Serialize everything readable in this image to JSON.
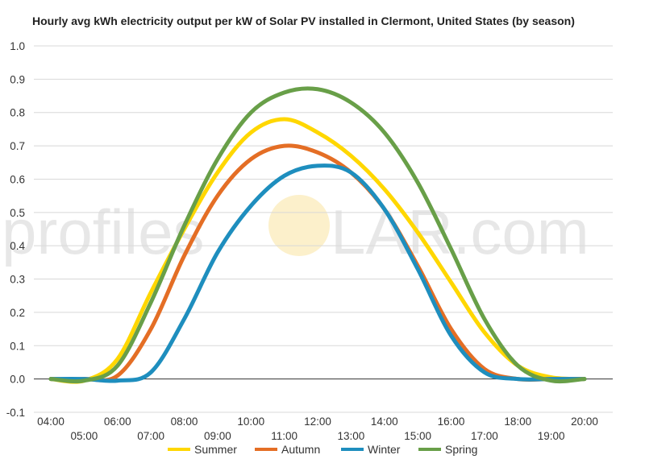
{
  "watermark": {
    "left": "profiles",
    "right": "LAR.com",
    "sun_color": "#f7d36b"
  },
  "chart_data": {
    "type": "line",
    "title": "Hourly avg kWh electricity output per kW of Solar PV installed in Clermont, United States (by season)",
    "xlabel": "",
    "ylabel": "",
    "ylim": [
      -0.1,
      1.0
    ],
    "yticks": [
      "-0.1",
      "0.0",
      "0.1",
      "0.2",
      "0.3",
      "0.4",
      "0.5",
      "0.6",
      "0.7",
      "0.8",
      "0.9",
      "1.0"
    ],
    "x": [
      "04:00",
      "05:00",
      "06:00",
      "07:00",
      "08:00",
      "09:00",
      "10:00",
      "11:00",
      "12:00",
      "13:00",
      "14:00",
      "15:00",
      "16:00",
      "17:00",
      "18:00",
      "19:00",
      "20:00"
    ],
    "grid": true,
    "legend_position": "bottom",
    "series": [
      {
        "name": "Summer",
        "color": "#ffd700",
        "values": [
          0.0,
          -0.005,
          0.06,
          0.26,
          0.45,
          0.62,
          0.74,
          0.78,
          0.74,
          0.67,
          0.57,
          0.44,
          0.29,
          0.14,
          0.04,
          0.005,
          0.0
        ]
      },
      {
        "name": "Autumn",
        "color": "#e46e25",
        "values": [
          0.0,
          0.0,
          0.01,
          0.15,
          0.37,
          0.55,
          0.66,
          0.7,
          0.68,
          0.62,
          0.51,
          0.34,
          0.15,
          0.03,
          0.0,
          0.0,
          0.0
        ]
      },
      {
        "name": "Winter",
        "color": "#1e8ebe",
        "values": [
          0.0,
          0.0,
          -0.005,
          0.02,
          0.18,
          0.38,
          0.52,
          0.61,
          0.64,
          0.62,
          0.51,
          0.33,
          0.13,
          0.02,
          0.0,
          0.0,
          0.0
        ]
      },
      {
        "name": "Spring",
        "color": "#689f48",
        "values": [
          0.0,
          -0.005,
          0.04,
          0.23,
          0.46,
          0.66,
          0.8,
          0.86,
          0.87,
          0.83,
          0.74,
          0.59,
          0.39,
          0.18,
          0.04,
          -0.005,
          0.0
        ]
      }
    ]
  }
}
